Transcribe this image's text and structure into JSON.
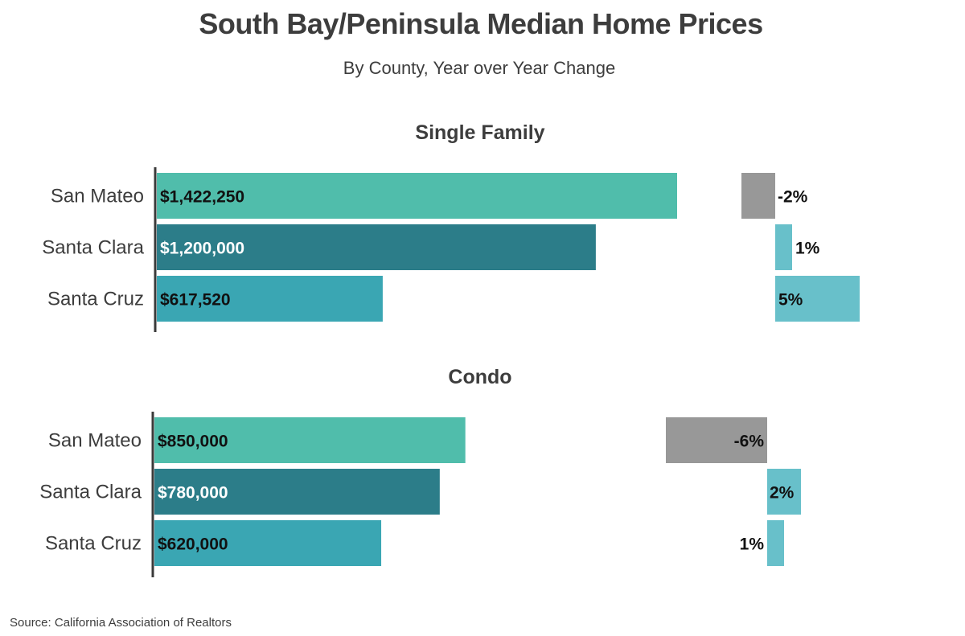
{
  "chart_data": {
    "type": "bar",
    "title": "South Bay/Peninsula Median Home Prices",
    "subtitle": "By County, Year over Year Change",
    "source": "Source:  California Association of Realtors",
    "categories": [
      "San Mateo",
      "Santa Clara",
      "Santa Cruz"
    ],
    "colors": {
      "San Mateo": "#50bdab",
      "Santa Clara": "#2c7d89",
      "Santa Cruz": "#3aa6b3",
      "positive_change": "#68c0ca",
      "negative_change": "#989898"
    },
    "label_colors": {
      "San Mateo": "#111111",
      "Santa Clara": "#ffffff",
      "Santa Cruz": "#111111"
    },
    "panels": [
      {
        "name": "Single Family",
        "values": [
          1422250,
          1200000,
          617520
        ],
        "value_labels": [
          "$1,422,250",
          "$1,200,000",
          "$617,520"
        ],
        "change_pct": [
          -2,
          1,
          5
        ],
        "change_labels": [
          "-2%",
          "1%",
          "5%"
        ]
      },
      {
        "name": "Condo",
        "values": [
          850000,
          780000,
          620000
        ],
        "value_labels": [
          "$850,000",
          "$780,000",
          "$620,000"
        ],
        "change_pct": [
          -6,
          2,
          1
        ],
        "change_labels": [
          "-6%",
          "2%",
          "1%"
        ]
      }
    ]
  }
}
